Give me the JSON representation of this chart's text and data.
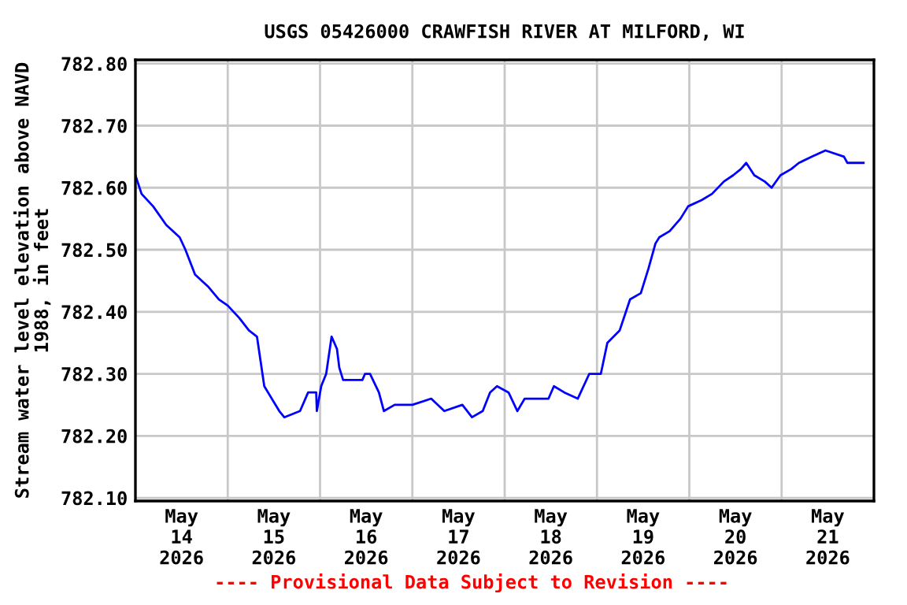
{
  "chart_data": {
    "type": "line",
    "title": "USGS 05426000 CRAWFISH RIVER AT MILFORD, WI",
    "ylabel": "Stream water level elevation above NAVD\n1988, in feet",
    "annotations": [
      "---- Provisional Data Subject to Revision ----"
    ],
    "x": [
      "2026-05-14T00:00",
      "2026-05-14T01:36",
      "2026-05-14T04:36",
      "2026-05-14T08:00",
      "2026-05-14T11:30",
      "2026-05-14T13:00",
      "2026-05-14T15:30",
      "2026-05-14T19:00",
      "2026-05-14T21:42",
      "2026-05-15T00:00",
      "2026-05-15T03:00",
      "2026-05-15T05:30",
      "2026-05-15T07:36",
      "2026-05-15T09:30",
      "2026-05-15T13:24",
      "2026-05-15T14:42",
      "2026-05-15T18:48",
      "2026-05-15T20:54",
      "2026-05-15T23:00",
      "2026-05-15T23:10",
      "2026-05-16T00:18",
      "2026-05-16T01:36",
      "2026-05-16T03:00",
      "2026-05-16T04:24",
      "2026-05-16T05:00",
      "2026-05-16T06:00",
      "2026-05-16T11:00",
      "2026-05-16T11:42",
      "2026-05-16T13:00",
      "2026-05-16T15:18",
      "2026-05-16T16:36",
      "2026-05-16T19:24",
      "2026-05-17T00:00",
      "2026-05-17T04:54",
      "2026-05-17T08:18",
      "2026-05-17T13:00",
      "2026-05-17T15:30",
      "2026-05-17T18:18",
      "2026-05-17T20:12",
      "2026-05-17T22:00",
      "2026-05-18T01:00",
      "2026-05-18T03:18",
      "2026-05-18T05:12",
      "2026-05-18T11:24",
      "2026-05-18T12:48",
      "2026-05-18T15:30",
      "2026-05-18T19:00",
      "2026-05-18T22:00",
      "2026-05-19T01:00",
      "2026-05-19T02:42",
      "2026-05-19T05:54",
      "2026-05-19T08:36",
      "2026-05-19T11:24",
      "2026-05-19T13:24",
      "2026-05-19T15:12",
      "2026-05-19T16:12",
      "2026-05-19T18:54",
      "2026-05-19T21:42",
      "2026-05-19T23:42",
      "2026-05-20T03:12",
      "2026-05-20T05:54",
      "2026-05-20T09:00",
      "2026-05-20T11:24",
      "2026-05-20T13:24",
      "2026-05-20T14:48",
      "2026-05-20T16:54",
      "2026-05-20T19:36",
      "2026-05-20T21:24",
      "2026-05-20T23:42",
      "2026-05-21T02:30",
      "2026-05-21T04:30",
      "2026-05-21T07:54",
      "2026-05-21T11:24",
      "2026-05-21T16:12",
      "2026-05-21T17:06",
      "2026-05-21T21:18"
    ],
    "series": [
      {
        "color": "#0000ff",
        "values": [
          782.62,
          782.59,
          782.57,
          782.54,
          782.52,
          782.5,
          782.46,
          782.44,
          782.42,
          782.41,
          782.39,
          782.37,
          782.36,
          782.28,
          782.24,
          782.23,
          782.24,
          782.27,
          782.27,
          782.24,
          782.28,
          782.3,
          782.36,
          782.34,
          782.31,
          782.29,
          782.29,
          782.3,
          782.3,
          782.27,
          782.24,
          782.25,
          782.25,
          782.26,
          782.24,
          782.25,
          782.23,
          782.24,
          782.27,
          782.28,
          782.27,
          782.24,
          782.26,
          782.26,
          782.28,
          782.27,
          782.26,
          782.3,
          782.3,
          782.35,
          782.37,
          782.42,
          782.43,
          782.47,
          782.51,
          782.52,
          782.53,
          782.55,
          782.57,
          782.58,
          782.59,
          782.61,
          782.62,
          782.63,
          782.64,
          782.62,
          782.61,
          782.6,
          782.62,
          782.63,
          782.64,
          782.65,
          782.66,
          782.65,
          782.64,
          782.64
        ]
      }
    ],
    "xlim": [
      "2026-05-14T00:00",
      "2026-05-22T00:00"
    ],
    "xticks": [
      {
        "value": "2026-05-15T00:00",
        "label": null
      },
      {
        "value": "2026-05-16T00:00",
        "label": null
      },
      {
        "value": "2026-05-17T00:00",
        "label": null
      },
      {
        "value": "2026-05-18T00:00",
        "label": null
      },
      {
        "value": "2026-05-19T00:00",
        "label": null
      },
      {
        "value": "2026-05-20T00:00",
        "label": null
      },
      {
        "value": "2026-05-21T00:00",
        "label": null
      },
      {
        "value": "2026-05-14T12:00",
        "label": "May\n14\n2026"
      },
      {
        "value": "2026-05-15T12:00",
        "label": "May\n15\n2026"
      },
      {
        "value": "2026-05-16T12:00",
        "label": "May\n16\n2026"
      },
      {
        "value": "2026-05-17T12:00",
        "label": "May\n17\n2026"
      },
      {
        "value": "2026-05-18T12:00",
        "label": "May\n18\n2026"
      },
      {
        "value": "2026-05-19T12:00",
        "label": "May\n19\n2026"
      },
      {
        "value": "2026-05-20T12:00",
        "label": "May\n20\n2026"
      },
      {
        "value": "2026-05-21T12:00",
        "label": "May\n21\n2026"
      }
    ],
    "ylim": [
      782.095,
      782.806
    ],
    "yticks": [
      {
        "value": 782.1,
        "label": "782.10"
      },
      {
        "value": 782.2,
        "label": "782.20"
      },
      {
        "value": 782.3,
        "label": "782.30"
      },
      {
        "value": 782.4,
        "label": "782.40"
      },
      {
        "value": 782.5,
        "label": "782.50"
      },
      {
        "value": 782.6,
        "label": "782.60"
      },
      {
        "value": 782.7,
        "label": "782.70"
      },
      {
        "value": 782.8,
        "label": "782.80"
      }
    ],
    "grid": true,
    "legend": false
  }
}
